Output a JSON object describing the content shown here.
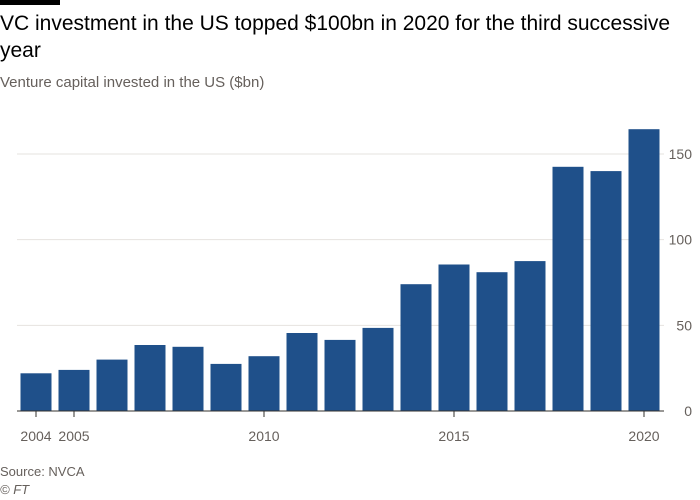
{
  "header": {
    "title": "VC investment in the US topped $100bn in 2020 for the third successive year",
    "subtitle": "Venture capital invested in the US ($bn)"
  },
  "footer": {
    "source": "Source: NVCA",
    "copyright": "© FT"
  },
  "colors": {
    "bar": "#1f508a",
    "grid": "#e6e3df",
    "axis": "#33302e"
  },
  "chart_data": {
    "type": "bar",
    "title": "VC investment in the US topped $100bn in 2020 for the third successive year",
    "subtitle": "Venture capital invested in the US ($bn)",
    "xlabel": "",
    "ylabel": "",
    "categories": [
      2004,
      2005,
      2006,
      2007,
      2008,
      2009,
      2010,
      2011,
      2012,
      2013,
      2014,
      2015,
      2016,
      2017,
      2018,
      2019,
      2020
    ],
    "values": [
      22,
      24,
      30,
      38.5,
      37.5,
      27.5,
      32,
      45.5,
      41.5,
      48.5,
      74,
      85.5,
      81,
      87.5,
      142.5,
      140,
      164.5
    ],
    "x_tick_labels": [
      "2004",
      "2005",
      "2010",
      "2015",
      "2020"
    ],
    "y_ticks": [
      0,
      50,
      100,
      150
    ],
    "ylim": [
      0,
      175
    ],
    "y_axis_position": "right",
    "grid": true
  }
}
